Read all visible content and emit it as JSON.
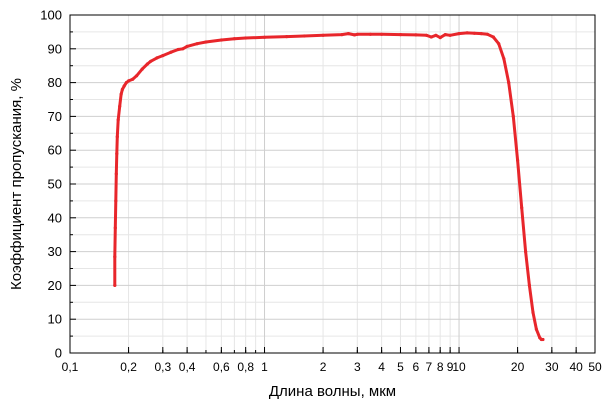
{
  "chart_data": {
    "type": "line",
    "title": "",
    "xlabel": "Длина волны, мкм",
    "ylabel": "Коэффициент пропускания, %",
    "x_scale": "log",
    "xlim": [
      0.1,
      50
    ],
    "ylim": [
      0,
      100
    ],
    "grid": true,
    "legend": "none",
    "x_ticks": [
      {
        "v": 0.1,
        "label": "0,1"
      },
      {
        "v": 0.2,
        "label": "0,2"
      },
      {
        "v": 0.3,
        "label": "0,3"
      },
      {
        "v": 0.4,
        "label": "0,4"
      },
      {
        "v": 0.6,
        "label": "0,6"
      },
      {
        "v": 0.8,
        "label": "0,8"
      },
      {
        "v": 1,
        "label": "1"
      },
      {
        "v": 2,
        "label": "2"
      },
      {
        "v": 3,
        "label": "3"
      },
      {
        "v": 4,
        "label": "4"
      },
      {
        "v": 5,
        "label": "5"
      },
      {
        "v": 6,
        "label": "6"
      },
      {
        "v": 7,
        "label": "7"
      },
      {
        "v": 8,
        "label": "8"
      },
      {
        "v": 9,
        "label": "9"
      },
      {
        "v": 10,
        "label": "10"
      },
      {
        "v": 20,
        "label": "20"
      },
      {
        "v": 30,
        "label": "30"
      },
      {
        "v": 40,
        "label": "40"
      },
      {
        "v": 50,
        "label": "50"
      }
    ],
    "y_ticks": [
      0,
      10,
      20,
      30,
      40,
      50,
      60,
      70,
      80,
      90,
      100
    ],
    "series": [
      {
        "color": "#e8262b",
        "x": [
          0.17,
          0.17,
          0.171,
          0.172,
          0.173,
          0.174,
          0.175,
          0.177,
          0.18,
          0.183,
          0.186,
          0.19,
          0.195,
          0.2,
          0.21,
          0.22,
          0.235,
          0.25,
          0.26,
          0.28,
          0.3,
          0.33,
          0.36,
          0.38,
          0.4,
          0.45,
          0.5,
          0.6,
          0.7,
          0.8,
          1.0,
          1.3,
          1.6,
          2.0,
          2.5,
          2.7,
          2.9,
          3.0,
          3.5,
          4.0,
          5.0,
          6.0,
          6.8,
          7.2,
          7.6,
          8.0,
          8.5,
          9.0,
          10,
          11,
          12,
          13,
          14,
          15,
          16,
          17,
          18,
          19,
          20,
          21,
          22,
          23,
          24,
          25,
          26,
          26.5,
          27
        ],
        "y": [
          20,
          28.5,
          37,
          45,
          53,
          59,
          64,
          69,
          73,
          76.5,
          78,
          79,
          80,
          80.5,
          81,
          82,
          84,
          85.5,
          86.3,
          87.3,
          88,
          89,
          89.8,
          90,
          90.7,
          91.5,
          92,
          92.6,
          93,
          93.2,
          93.4,
          93.6,
          93.8,
          94,
          94.2,
          94.5,
          94.1,
          94.3,
          94.3,
          94.3,
          94.2,
          94.1,
          94,
          93.5,
          94,
          93.3,
          94.2,
          94,
          94.5,
          94.7,
          94.6,
          94.5,
          94.3,
          93.5,
          91.5,
          87,
          80,
          70,
          57,
          43,
          30,
          20,
          12,
          7,
          4.5,
          4,
          4
        ]
      }
    ]
  }
}
